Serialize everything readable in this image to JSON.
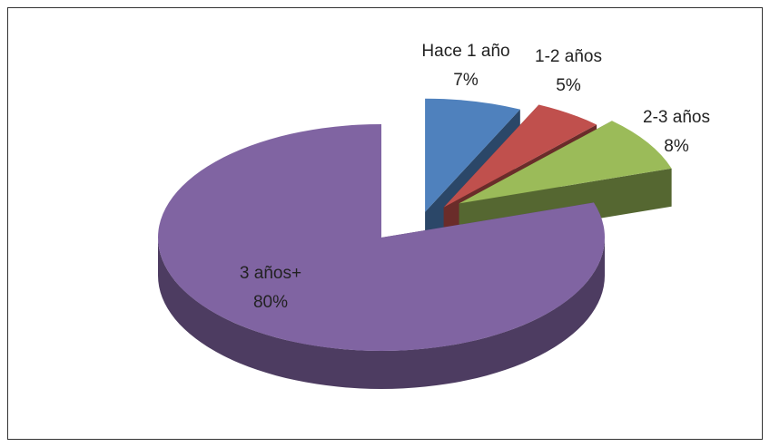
{
  "chart_data": {
    "type": "pie",
    "categories": [
      "Hace 1 año",
      "1-2 años",
      "2-3 años",
      "3 años+"
    ],
    "values": [
      7,
      5,
      8,
      80
    ],
    "value_labels": [
      "7%",
      "5%",
      "8%",
      "80%"
    ],
    "colors": [
      "#4f81bd",
      "#c0504d",
      "#9bbb59",
      "#8064a2"
    ]
  }
}
